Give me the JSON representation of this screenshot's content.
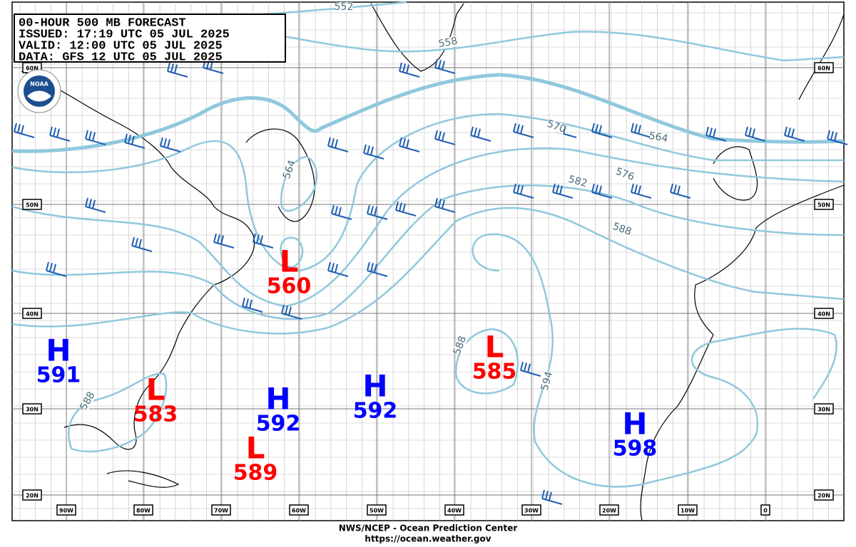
{
  "header": {
    "lines": [
      "00-HOUR 500 MB FORECAST",
      "ISSUED: 17:19 UTC 05 JUL 2025",
      "VALID:  12:00 UTC 05 JUL 2025",
      "DATA:  GFS 12 UTC 05 JUL 2025"
    ]
  },
  "logo": {
    "label": "NOAA"
  },
  "centers": [
    {
      "type": "H",
      "value": "591"
    },
    {
      "type": "L",
      "value": "583"
    },
    {
      "type": "H",
      "value": "592"
    },
    {
      "type": "L",
      "value": "589"
    },
    {
      "type": "H",
      "value": "592"
    },
    {
      "type": "L",
      "value": "560"
    },
    {
      "type": "L",
      "value": "585"
    },
    {
      "type": "H",
      "value": "598"
    }
  ],
  "contour_labels": [
    "552",
    "558",
    "564",
    "570",
    "564",
    "582",
    "576",
    "588",
    "588",
    "594",
    "588"
  ],
  "latitudes": [
    "60N",
    "50N",
    "40N",
    "30N",
    "20N"
  ],
  "longitudes": [
    "90W",
    "80W",
    "70W",
    "60W",
    "50W",
    "40W",
    "30W",
    "20W",
    "10W",
    "0"
  ],
  "footer": {
    "line1": "NWS/NCEP - Ocean Prediction Center",
    "line2": "https://ocean.weather.gov"
  }
}
